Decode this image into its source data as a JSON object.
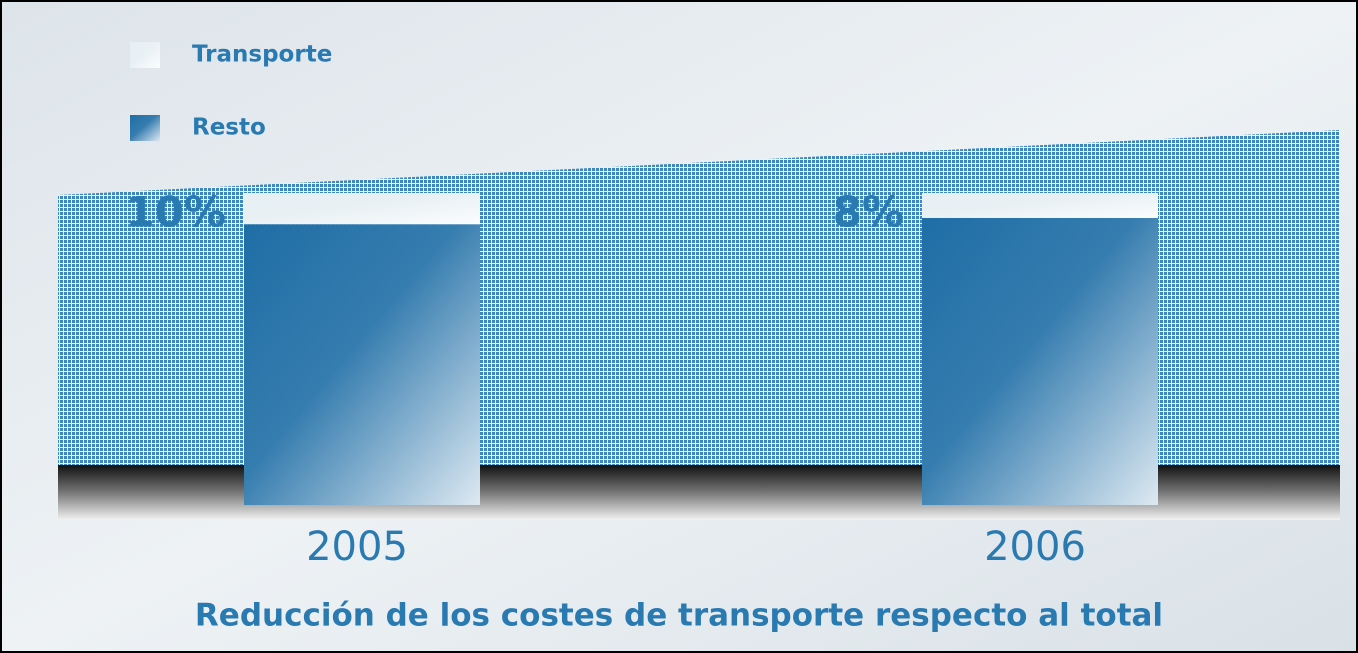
{
  "chart_data": {
    "type": "bar",
    "stacked": true,
    "title": "Reducción de los costes de transporte respecto al total",
    "categories": [
      "2005",
      "2006"
    ],
    "series": [
      {
        "name": "Transporte",
        "color": "#e6eff3",
        "values": [
          10,
          8
        ],
        "value_labels": [
          "10%",
          "8%"
        ]
      },
      {
        "name": "Resto",
        "color": "#1f6ea6",
        "values": [
          90,
          92
        ]
      }
    ],
    "legend": "top-left"
  }
}
